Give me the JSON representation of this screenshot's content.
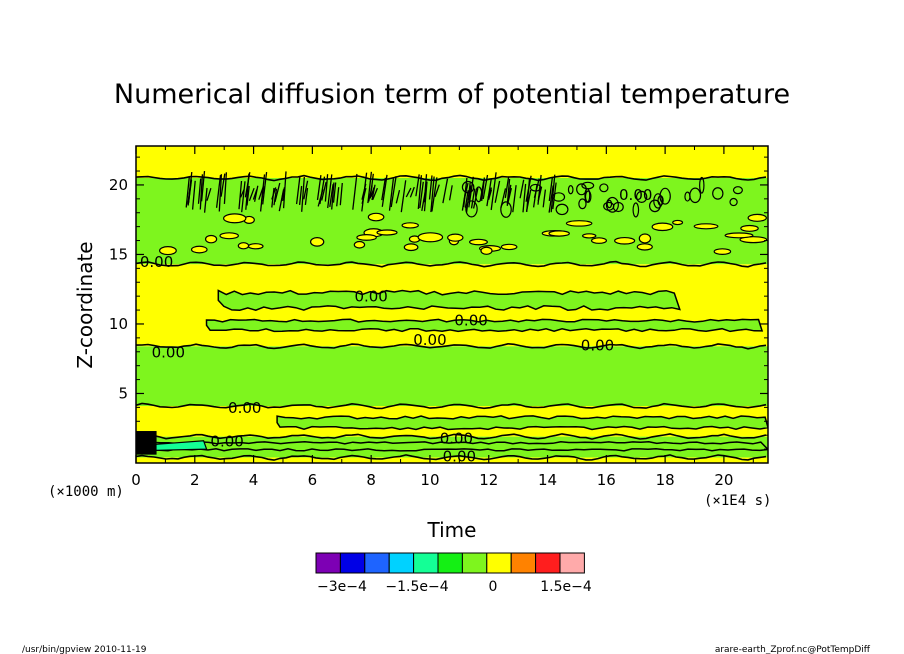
{
  "chart_data": {
    "type": "heatmap",
    "title": "Numerical diffusion term of potential temperature",
    "xlabel": "Time",
    "ylabel": "Z-coordinate",
    "x_unit": "(×1E4 s)",
    "y_unit": "(×1000 m)",
    "xlim": [
      0,
      21.5
    ],
    "ylim": [
      0,
      22.8
    ],
    "x_ticks": [
      "0",
      "2",
      "4",
      "6",
      "8",
      "10",
      "12",
      "14",
      "16",
      "18",
      "20"
    ],
    "y_ticks": [
      "5",
      "10",
      "15",
      "20"
    ],
    "colorbar": {
      "colors": [
        "#7d00b4",
        "#0000e6",
        "#1e64ff",
        "#00d2ff",
        "#14ff96",
        "#14f014",
        "#7ef51e",
        "#ffff00",
        "#ff8200",
        "#ff1e1e",
        "#ffaaaa"
      ],
      "labels": [
        "−3e−4",
        "−1.5e−4",
        "0",
        "1.5e−4"
      ]
    },
    "bands": [
      {
        "y0": 0.0,
        "y1": 0.4,
        "fill": "#ffff00",
        "note": "near-zero slightly positive"
      },
      {
        "y0": 0.4,
        "y1": 1.9,
        "fill": "#7ef51e"
      },
      {
        "y0": 1.9,
        "y1": 4.1,
        "fill": "#ffff00"
      },
      {
        "y0": 4.1,
        "y1": 8.4,
        "fill": "#7ef51e"
      },
      {
        "y0": 8.4,
        "y1": 14.3,
        "fill": "#ffff00"
      },
      {
        "y0": 14.3,
        "y1": 20.5,
        "fill": "#7ef51e"
      },
      {
        "y0": 20.5,
        "y1": 22.8,
        "fill": "#ffff00"
      }
    ],
    "contour_labels": [
      {
        "x": 0.7,
        "y": 14.1,
        "text": "0.00"
      },
      {
        "x": 1.1,
        "y": 7.6,
        "text": "0.00"
      },
      {
        "x": 3.7,
        "y": 3.6,
        "text": "0.00"
      },
      {
        "x": 3.1,
        "y": 1.2,
        "text": "0.00"
      },
      {
        "x": 8.0,
        "y": 11.6,
        "text": "0.00"
      },
      {
        "x": 11.4,
        "y": 9.9,
        "text": "0.00"
      },
      {
        "x": 10.0,
        "y": 8.5,
        "text": "0.00"
      },
      {
        "x": 15.7,
        "y": 8.1,
        "text": "0.00"
      },
      {
        "x": 17.0,
        "y": 18.9,
        "text": "0.00"
      },
      {
        "x": 10.9,
        "y": 1.4,
        "text": "0.00"
      },
      {
        "x": 11.0,
        "y": 0.1,
        "text": "0.00"
      }
    ]
  },
  "footer": {
    "left": "/usr/bin/gpview  2010-11-19",
    "right": "arare-earth_Zprof.nc@PotTempDiff"
  }
}
